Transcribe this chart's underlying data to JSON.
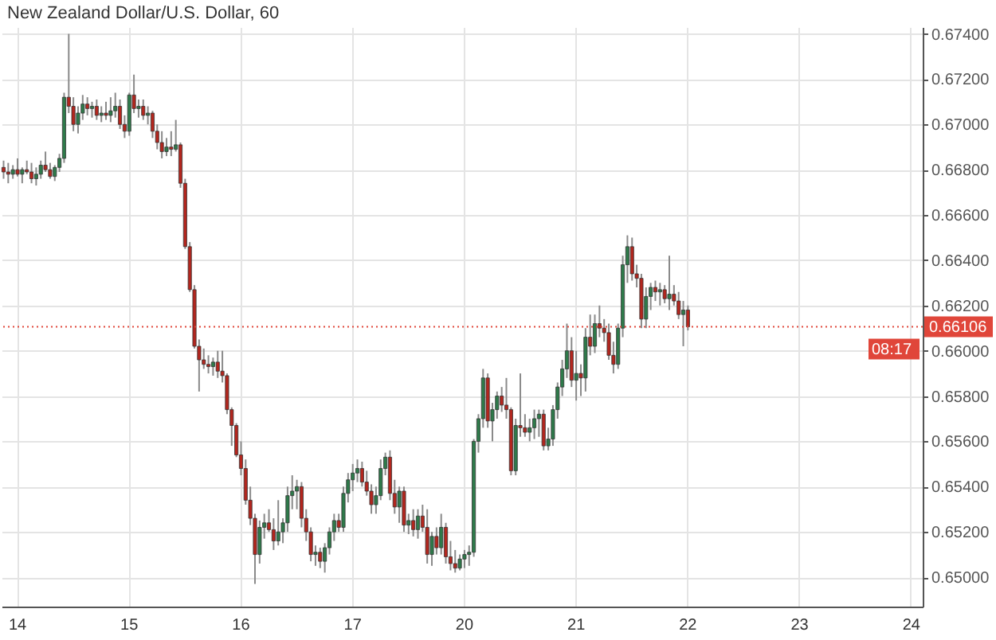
{
  "chart_data": {
    "type": "candlestick",
    "title": "New Zealand Dollar/U.S. Dollar, 60",
    "categories": [
      null,
      null,
      null,
      "14",
      null,
      null,
      null,
      null,
      null,
      null,
      null,
      null,
      null,
      null,
      null,
      null,
      null,
      null,
      null,
      null,
      null,
      null,
      null,
      null,
      null,
      null,
      null,
      "15",
      null,
      null,
      null,
      null,
      null,
      null,
      null,
      null,
      null,
      null,
      null,
      null,
      null,
      null,
      null,
      null,
      null,
      null,
      null,
      null,
      null,
      null,
      null,
      "16",
      null,
      null,
      null,
      null,
      null,
      null,
      null,
      null,
      null,
      null,
      null,
      null,
      null,
      null,
      null,
      null,
      null,
      null,
      null,
      null,
      null,
      null,
      null,
      "17",
      null,
      null,
      null,
      null,
      null,
      null,
      null,
      null,
      null,
      null,
      null,
      null,
      null,
      null,
      null,
      null,
      null,
      null,
      null,
      null,
      null,
      null,
      null,
      "20",
      null,
      null,
      null,
      null,
      null,
      null,
      null,
      null,
      null,
      null,
      null,
      null,
      null,
      null,
      null,
      null,
      null,
      null,
      null,
      null,
      null,
      null,
      null,
      "21",
      null,
      null,
      null,
      null,
      null,
      null,
      null,
      null,
      null,
      null,
      null,
      null,
      null,
      null,
      null,
      null,
      null,
      null,
      null,
      null,
      null,
      null,
      null,
      "22",
      null,
      null,
      null,
      null,
      null,
      null,
      null,
      null,
      null,
      null,
      null,
      null,
      null,
      null,
      null,
      null,
      null,
      null,
      null,
      null,
      null,
      null,
      null,
      "23",
      null,
      null,
      null,
      null,
      null,
      null,
      null,
      null,
      null,
      null,
      null,
      null,
      null,
      null,
      null,
      null,
      null,
      null,
      null,
      null,
      null,
      null,
      null,
      "24",
      null,
      null
    ],
    "ohlc": [
      [
        0.6681,
        0.6684,
        0.6676,
        0.6679
      ],
      [
        0.6679,
        0.6683,
        0.6674,
        0.6678
      ],
      [
        0.6678,
        0.6682,
        0.6676,
        0.668
      ],
      [
        0.668,
        0.6685,
        0.6677,
        0.6678
      ],
      [
        0.6678,
        0.6681,
        0.6674,
        0.668
      ],
      [
        0.668,
        0.6684,
        0.6678,
        0.6679
      ],
      [
        0.6679,
        0.6683,
        0.6674,
        0.6676
      ],
      [
        0.6676,
        0.6681,
        0.6673,
        0.6678
      ],
      [
        0.6678,
        0.6684,
        0.6676,
        0.6682
      ],
      [
        0.6682,
        0.6688,
        0.6679,
        0.668
      ],
      [
        0.668,
        0.6683,
        0.6676,
        0.6677
      ],
      [
        0.6677,
        0.6682,
        0.6675,
        0.6681
      ],
      [
        0.6681,
        0.6687,
        0.6679,
        0.6685
      ],
      [
        0.6685,
        0.6714,
        0.6683,
        0.6712
      ],
      [
        0.6712,
        0.674,
        0.6705,
        0.6708
      ],
      [
        0.6708,
        0.6712,
        0.6697,
        0.67
      ],
      [
        0.67,
        0.6708,
        0.6696,
        0.6705
      ],
      [
        0.6705,
        0.6713,
        0.6702,
        0.6709
      ],
      [
        0.6709,
        0.6712,
        0.6704,
        0.6707
      ],
      [
        0.6707,
        0.671,
        0.6703,
        0.6708
      ],
      [
        0.6708,
        0.6711,
        0.6702,
        0.6704
      ],
      [
        0.6704,
        0.6708,
        0.6701,
        0.6705
      ],
      [
        0.6705,
        0.671,
        0.6702,
        0.6704
      ],
      [
        0.6704,
        0.6712,
        0.6701,
        0.6706
      ],
      [
        0.6706,
        0.6714,
        0.6703,
        0.6708
      ],
      [
        0.6708,
        0.6711,
        0.6698,
        0.67
      ],
      [
        0.67,
        0.6704,
        0.6694,
        0.6697
      ],
      [
        0.6697,
        0.6714,
        0.6695,
        0.6713
      ],
      [
        0.6713,
        0.6722,
        0.6705,
        0.6707
      ],
      [
        0.6707,
        0.6711,
        0.6703,
        0.6708
      ],
      [
        0.6708,
        0.6711,
        0.6702,
        0.6704
      ],
      [
        0.6704,
        0.6708,
        0.67,
        0.6705
      ],
      [
        0.6705,
        0.6706,
        0.6694,
        0.6697
      ],
      [
        0.6697,
        0.67,
        0.6689,
        0.6692
      ],
      [
        0.6692,
        0.6697,
        0.6685,
        0.6688
      ],
      [
        0.6688,
        0.6694,
        0.6686,
        0.669
      ],
      [
        0.669,
        0.6697,
        0.6686,
        0.6689
      ],
      [
        0.6689,
        0.6702,
        0.6688,
        0.6691
      ],
      [
        0.6691,
        0.6692,
        0.6672,
        0.6674
      ],
      [
        0.6674,
        0.6676,
        0.6645,
        0.6646
      ],
      [
        0.6646,
        0.6648,
        0.6626,
        0.6627
      ],
      [
        0.6627,
        0.6629,
        0.6601,
        0.6602
      ],
      [
        0.6602,
        0.6605,
        0.6582,
        0.6596
      ],
      [
        0.6596,
        0.6601,
        0.6592,
        0.6594
      ],
      [
        0.6594,
        0.6598,
        0.659,
        0.6593
      ],
      [
        0.6593,
        0.6597,
        0.6589,
        0.6595
      ],
      [
        0.6595,
        0.66,
        0.6588,
        0.6591
      ],
      [
        0.6591,
        0.66,
        0.6586,
        0.6589
      ],
      [
        0.6589,
        0.659,
        0.6572,
        0.6574
      ],
      [
        0.6574,
        0.6575,
        0.6558,
        0.6567
      ],
      [
        0.6567,
        0.6568,
        0.6553,
        0.6554
      ],
      [
        0.6554,
        0.656,
        0.6545,
        0.6548
      ],
      [
        0.6548,
        0.6552,
        0.6532,
        0.6534
      ],
      [
        0.6534,
        0.654,
        0.6523,
        0.6526
      ],
      [
        0.6526,
        0.6528,
        0.6497,
        0.651
      ],
      [
        0.651,
        0.6525,
        0.6506,
        0.6522
      ],
      [
        0.6522,
        0.6528,
        0.6517,
        0.6524
      ],
      [
        0.6524,
        0.653,
        0.652,
        0.6521
      ],
      [
        0.6521,
        0.6526,
        0.6512,
        0.6516
      ],
      [
        0.6516,
        0.6534,
        0.6514,
        0.652
      ],
      [
        0.652,
        0.6526,
        0.6515,
        0.6524
      ],
      [
        0.6524,
        0.654,
        0.652,
        0.6536
      ],
      [
        0.6536,
        0.6545,
        0.653,
        0.6538
      ],
      [
        0.6538,
        0.6543,
        0.653,
        0.654
      ],
      [
        0.654,
        0.6542,
        0.6522,
        0.6526
      ],
      [
        0.6526,
        0.653,
        0.6516,
        0.652
      ],
      [
        0.652,
        0.6522,
        0.6507,
        0.651
      ],
      [
        0.651,
        0.6514,
        0.6505,
        0.6511
      ],
      [
        0.6511,
        0.6513,
        0.6504,
        0.6507
      ],
      [
        0.6507,
        0.6515,
        0.6502,
        0.6513
      ],
      [
        0.6513,
        0.6522,
        0.651,
        0.652
      ],
      [
        0.652,
        0.6528,
        0.6516,
        0.6525
      ],
      [
        0.6525,
        0.6528,
        0.652,
        0.6522
      ],
      [
        0.6522,
        0.654,
        0.652,
        0.6537
      ],
      [
        0.6537,
        0.6546,
        0.6533,
        0.6543
      ],
      [
        0.6543,
        0.655,
        0.6538,
        0.6546
      ],
      [
        0.6546,
        0.6552,
        0.6542,
        0.6548
      ],
      [
        0.6548,
        0.6551,
        0.654,
        0.6542
      ],
      [
        0.6542,
        0.6547,
        0.6536,
        0.6538
      ],
      [
        0.6538,
        0.6541,
        0.6528,
        0.6532
      ],
      [
        0.6532,
        0.654,
        0.6528,
        0.6536
      ],
      [
        0.6536,
        0.6552,
        0.6534,
        0.6548
      ],
      [
        0.6548,
        0.6555,
        0.6545,
        0.6553
      ],
      [
        0.6553,
        0.6556,
        0.6534,
        0.6537
      ],
      [
        0.6537,
        0.6543,
        0.6528,
        0.6531
      ],
      [
        0.6531,
        0.654,
        0.6524,
        0.6538
      ],
      [
        0.6538,
        0.654,
        0.652,
        0.6523
      ],
      [
        0.6523,
        0.6528,
        0.6519,
        0.6525
      ],
      [
        0.6525,
        0.653,
        0.6518,
        0.6521
      ],
      [
        0.6521,
        0.653,
        0.6517,
        0.6527
      ],
      [
        0.6527,
        0.6532,
        0.652,
        0.6522
      ],
      [
        0.6522,
        0.653,
        0.6506,
        0.651
      ],
      [
        0.651,
        0.652,
        0.6505,
        0.6518
      ],
      [
        0.6518,
        0.6522,
        0.651,
        0.6513
      ],
      [
        0.6513,
        0.6528,
        0.651,
        0.6522
      ],
      [
        0.6522,
        0.6524,
        0.6506,
        0.6509
      ],
      [
        0.6509,
        0.6516,
        0.6503,
        0.6506
      ],
      [
        0.6506,
        0.6512,
        0.6502,
        0.6504
      ],
      [
        0.6504,
        0.651,
        0.6503,
        0.6508
      ],
      [
        0.6508,
        0.6512,
        0.6504,
        0.651
      ],
      [
        0.651,
        0.6514,
        0.6505,
        0.6511
      ],
      [
        0.6511,
        0.6561,
        0.6509,
        0.656
      ],
      [
        0.656,
        0.6572,
        0.6555,
        0.657
      ],
      [
        0.657,
        0.6592,
        0.6566,
        0.6588
      ],
      [
        0.6588,
        0.659,
        0.6566,
        0.6569
      ],
      [
        0.6569,
        0.6577,
        0.656,
        0.6574
      ],
      [
        0.6574,
        0.6582,
        0.657,
        0.658
      ],
      [
        0.658,
        0.6584,
        0.6573,
        0.6576
      ],
      [
        0.6576,
        0.6588,
        0.657,
        0.6574
      ],
      [
        0.6574,
        0.6575,
        0.6545,
        0.6547
      ],
      [
        0.6547,
        0.657,
        0.6545,
        0.6567
      ],
      [
        0.6567,
        0.659,
        0.6562,
        0.6566
      ],
      [
        0.6566,
        0.6572,
        0.6562,
        0.6564
      ],
      [
        0.6564,
        0.657,
        0.656,
        0.6566
      ],
      [
        0.6566,
        0.6574,
        0.6561,
        0.657
      ],
      [
        0.657,
        0.6574,
        0.6562,
        0.6572
      ],
      [
        0.6572,
        0.6574,
        0.6556,
        0.6558
      ],
      [
        0.6558,
        0.6566,
        0.6556,
        0.6561
      ],
      [
        0.6561,
        0.6576,
        0.6558,
        0.6574
      ],
      [
        0.6574,
        0.6586,
        0.657,
        0.6584
      ],
      [
        0.6584,
        0.6596,
        0.658,
        0.6592
      ],
      [
        0.6592,
        0.6612,
        0.6588,
        0.66
      ],
      [
        0.66,
        0.6606,
        0.6584,
        0.6587
      ],
      [
        0.6587,
        0.66,
        0.6578,
        0.659
      ],
      [
        0.659,
        0.6594,
        0.658,
        0.6588
      ],
      [
        0.6588,
        0.661,
        0.6582,
        0.6606
      ],
      [
        0.6606,
        0.6616,
        0.6598,
        0.6602
      ],
      [
        0.6602,
        0.6616,
        0.6599,
        0.6612
      ],
      [
        0.6612,
        0.662,
        0.6606,
        0.661
      ],
      [
        0.661,
        0.6614,
        0.6604,
        0.6608
      ],
      [
        0.6608,
        0.6612,
        0.6596,
        0.6598
      ],
      [
        0.6598,
        0.6604,
        0.659,
        0.6594
      ],
      [
        0.6594,
        0.6612,
        0.6592,
        0.661
      ],
      [
        0.661,
        0.6642,
        0.6606,
        0.6638
      ],
      [
        0.6638,
        0.6651,
        0.663,
        0.6646
      ],
      [
        0.6646,
        0.665,
        0.6631,
        0.6634
      ],
      [
        0.6634,
        0.6638,
        0.6628,
        0.6632
      ],
      [
        0.6632,
        0.6634,
        0.661,
        0.6614
      ],
      [
        0.6614,
        0.6628,
        0.661,
        0.6624
      ],
      [
        0.6624,
        0.663,
        0.6618,
        0.6628
      ],
      [
        0.6628,
        0.6631,
        0.6622,
        0.6626
      ],
      [
        0.6626,
        0.663,
        0.662,
        0.6627
      ],
      [
        0.6627,
        0.6629,
        0.6621,
        0.6623
      ],
      [
        0.6623,
        0.6642,
        0.6618,
        0.6625
      ],
      [
        0.6625,
        0.6629,
        0.662,
        0.6622
      ],
      [
        0.6622,
        0.6626,
        0.6614,
        0.6616
      ],
      [
        0.6616,
        0.6622,
        0.6602,
        0.6618
      ],
      [
        0.6618,
        0.662,
        0.6609,
        0.66106
      ],
      null,
      null,
      null,
      null,
      null,
      null,
      null,
      null,
      null,
      null,
      null,
      null,
      null,
      null,
      null,
      null,
      null,
      null,
      null,
      null,
      null,
      null,
      null,
      null,
      null,
      null,
      null,
      null,
      null,
      null,
      null,
      null,
      null,
      null,
      null,
      null,
      null,
      null,
      null,
      null,
      null,
      null,
      null,
      null,
      null,
      null,
      null,
      null,
      null,
      null
    ],
    "colors": [
      "#b3261e",
      "#b3261e",
      "#2e7a4a",
      "#b3261e",
      "#2e7a4a",
      "#b3261e",
      "#b3261e",
      "#2e7a4a",
      "#2e7a4a",
      "#b3261e",
      "#b3261e",
      "#2e7a4a",
      "#2e7a4a",
      "#2e7a4a",
      "#b3261e",
      "#b3261e",
      "#2e7a4a",
      "#2e7a4a",
      "#b3261e",
      "#2e7a4a",
      "#b3261e",
      "#2e7a4a",
      "#b3261e",
      "#2e7a4a",
      "#2e7a4a",
      "#b3261e",
      "#b3261e",
      "#2e7a4a",
      "#b3261e",
      "#2e7a4a",
      "#b3261e",
      "#2e7a4a",
      "#b3261e",
      "#b3261e",
      "#b3261e",
      "#2e7a4a",
      "#b3261e",
      "#2e7a4a",
      "#b3261e",
      "#b3261e",
      "#b3261e",
      "#b3261e",
      "#b3261e",
      "#b3261e",
      "#b3261e",
      "#2e7a4a",
      "#b3261e",
      "#b3261e",
      "#b3261e",
      "#b3261e",
      "#b3261e",
      "#b3261e",
      "#b3261e",
      "#b3261e",
      "#b3261e",
      "#2e7a4a",
      "#2e7a4a",
      "#b3261e",
      "#b3261e",
      "#2e7a4a",
      "#2e7a4a",
      "#2e7a4a",
      "#2e7a4a",
      "#2e7a4a",
      "#b3261e",
      "#b3261e",
      "#b3261e",
      "#2e7a4a",
      "#b3261e",
      "#2e7a4a",
      "#2e7a4a",
      "#2e7a4a",
      "#b3261e",
      "#2e7a4a",
      "#2e7a4a",
      "#2e7a4a",
      "#2e7a4a",
      "#b3261e",
      "#b3261e",
      "#b3261e",
      "#2e7a4a",
      "#2e7a4a",
      "#2e7a4a",
      "#b3261e",
      "#b3261e",
      "#2e7a4a",
      "#b3261e",
      "#2e7a4a",
      "#b3261e",
      "#2e7a4a",
      "#b3261e",
      "#b3261e",
      "#2e7a4a",
      "#b3261e",
      "#2e7a4a",
      "#b3261e",
      "#b3261e",
      "#b3261e",
      "#2e7a4a",
      "#2e7a4a",
      "#2e7a4a",
      "#2e7a4a",
      "#2e7a4a",
      "#2e7a4a",
      "#b3261e",
      "#2e7a4a",
      "#2e7a4a",
      "#b3261e",
      "#b3261e",
      "#b3261e",
      "#2e7a4a",
      "#b3261e",
      "#b3261e",
      "#2e7a4a",
      "#2e7a4a",
      "#2e7a4a",
      "#b3261e",
      "#2e7a4a",
      "#2e7a4a",
      "#2e7a4a",
      "#2e7a4a",
      "#2e7a4a",
      "#b3261e",
      "#2e7a4a",
      "#b3261e",
      "#2e7a4a",
      "#b3261e",
      "#2e7a4a",
      "#b3261e",
      "#b3261e",
      "#b3261e",
      "#b3261e",
      "#2e7a4a",
      "#2e7a4a",
      "#2e7a4a",
      "#b3261e",
      "#b3261e",
      "#b3261e",
      "#2e7a4a",
      "#2e7a4a",
      "#b3261e",
      "#2e7a4a",
      "#b3261e",
      "#2e7a4a",
      "#b3261e",
      "#b3261e",
      "#2e7a4a",
      "#b3261e",
      null,
      null,
      null,
      null,
      null,
      null,
      null,
      null,
      null,
      null,
      null,
      null,
      null,
      null,
      null,
      null,
      null,
      null,
      null,
      null,
      null,
      null,
      null,
      null,
      null,
      null,
      null,
      null,
      null,
      null,
      null,
      null,
      null,
      null,
      null,
      null,
      null,
      null,
      null,
      null,
      null,
      null,
      null,
      null,
      null,
      null,
      null,
      null,
      null,
      null
    ],
    "ylim": [
      0.6487,
      0.6743
    ],
    "yticks": [
      {
        "value": 0.65,
        "label": "0.65000"
      },
      {
        "value": 0.652,
        "label": "0.65200"
      },
      {
        "value": 0.654,
        "label": "0.65400"
      },
      {
        "value": 0.656,
        "label": "0.65600"
      },
      {
        "value": 0.658,
        "label": "0.65800"
      },
      {
        "value": 0.66,
        "label": "0.66000"
      },
      {
        "value": 0.662,
        "label": "0.66200"
      },
      {
        "value": 0.664,
        "label": "0.66400"
      },
      {
        "value": 0.666,
        "label": "0.66600"
      },
      {
        "value": 0.668,
        "label": "0.66800"
      },
      {
        "value": 0.67,
        "label": "0.67000"
      },
      {
        "value": 0.672,
        "label": "0.67200"
      },
      {
        "value": 0.674,
        "label": "0.67400"
      }
    ],
    "grid": true,
    "ref_lines": [
      {
        "axis": "y",
        "value": 0.66106,
        "label": "0.66106",
        "color": "#e0463a",
        "line_style": "dotted"
      }
    ],
    "annotations": [
      "08:17"
    ]
  }
}
